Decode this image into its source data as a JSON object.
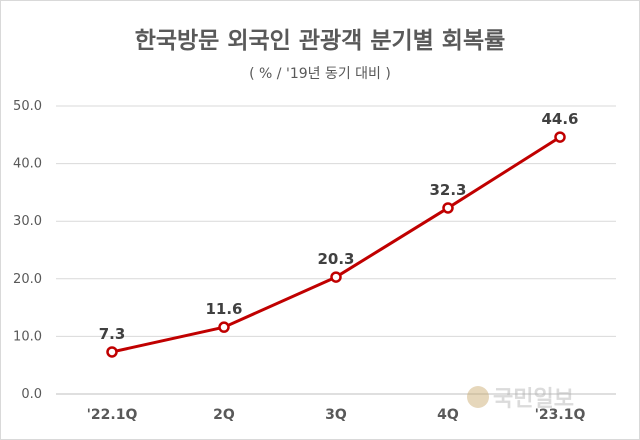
{
  "chart_data": {
    "type": "line",
    "title": "한국방문 외국인 관광객 분기별 회복률",
    "subtitle": "( % / '19년 동기 대비 )",
    "categories": [
      "'22.1Q",
      "2Q",
      "3Q",
      "4Q",
      "'23.1Q"
    ],
    "series": [
      {
        "values": [
          7.3,
          11.6,
          20.3,
          32.3,
          44.6
        ],
        "data_labels": [
          "7.3",
          "11.6",
          "20.3",
          "32.3",
          "44.6"
        ]
      }
    ],
    "y_ticks": [
      "0.0",
      "10.0",
      "20.0",
      "30.0",
      "40.0",
      "50.0"
    ],
    "ylim": [
      0,
      50
    ],
    "grid": true,
    "legend": "none",
    "colors": {
      "line": "#c00000",
      "marker_fill": "#ffffff",
      "grid": "#d9d9d9",
      "text": "#595959"
    }
  },
  "watermark": {
    "text": "국민일보",
    "icon": "newspaper-logo-icon"
  }
}
